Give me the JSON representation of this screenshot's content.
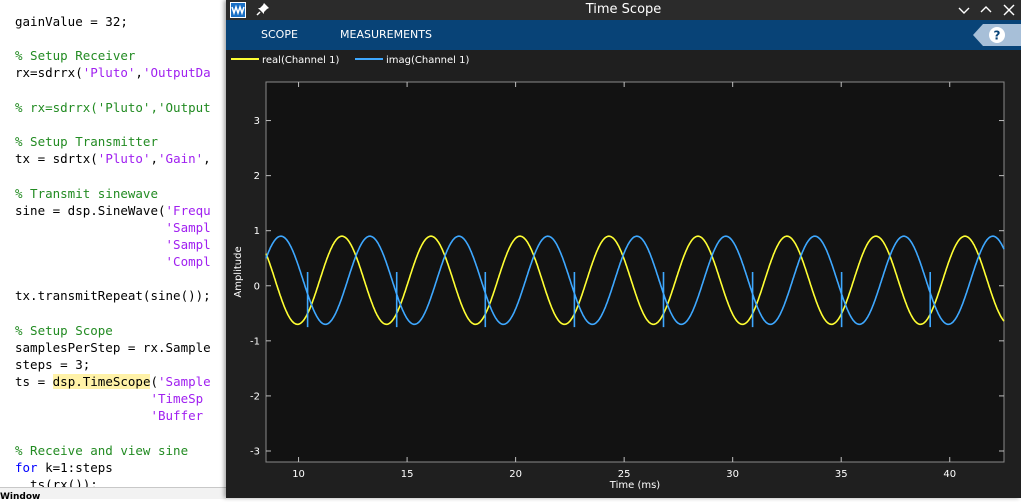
{
  "editor": {
    "lines": [
      [
        {
          "t": "gainValue = 32;",
          "c": ""
        }
      ],
      [],
      [
        {
          "t": "% Setup Receiver",
          "c": "cmt"
        }
      ],
      [
        {
          "t": "rx=sdrrx(",
          "c": ""
        },
        {
          "t": "'Pluto'",
          "c": "str"
        },
        {
          "t": ",",
          "c": ""
        },
        {
          "t": "'OutputDa",
          "c": "str"
        }
      ],
      [],
      [
        {
          "t": "% rx=sdrrx('Pluto','Output",
          "c": "cmt"
        }
      ],
      [],
      [
        {
          "t": "% Setup Transmitter",
          "c": "cmt"
        }
      ],
      [
        {
          "t": "tx = sdrtx(",
          "c": ""
        },
        {
          "t": "'Pluto'",
          "c": "str"
        },
        {
          "t": ",",
          "c": ""
        },
        {
          "t": "'Gain'",
          "c": "str"
        },
        {
          "t": ",",
          "c": ""
        }
      ],
      [],
      [
        {
          "t": "% Transmit sinewave",
          "c": "cmt"
        }
      ],
      [
        {
          "t": "sine = dsp.SineWave(",
          "c": ""
        },
        {
          "t": "'Frequ",
          "c": "str"
        }
      ],
      [
        {
          "t": "                    ",
          "c": ""
        },
        {
          "t": "'Sampl",
          "c": "str"
        }
      ],
      [
        {
          "t": "                    ",
          "c": ""
        },
        {
          "t": "'Sampl",
          "c": "str"
        }
      ],
      [
        {
          "t": "                    ",
          "c": ""
        },
        {
          "t": "'Compl",
          "c": "str"
        }
      ],
      [],
      [
        {
          "t": "tx.transmitRepeat(sine());",
          "c": ""
        }
      ],
      [],
      [
        {
          "t": "% Setup Scope",
          "c": "cmt"
        }
      ],
      [
        {
          "t": "samplesPerStep = rx.Sample",
          "c": ""
        }
      ],
      [
        {
          "t": "steps = 3;",
          "c": ""
        }
      ],
      [
        {
          "t": "ts = ",
          "c": ""
        },
        {
          "t": "dsp.TimeScope",
          "c": "hl"
        },
        {
          "t": "(",
          "c": ""
        },
        {
          "t": "'Sample",
          "c": "str"
        }
      ],
      [
        {
          "t": "                  ",
          "c": ""
        },
        {
          "t": "'TimeSp",
          "c": "str"
        }
      ],
      [
        {
          "t": "                  ",
          "c": ""
        },
        {
          "t": "'Buffer",
          "c": "str"
        }
      ],
      [],
      [
        {
          "t": "% Receive and view sine",
          "c": "cmt"
        }
      ],
      [
        {
          "t": "for",
          "c": "kw"
        },
        {
          "t": " k=1:steps",
          "c": ""
        }
      ],
      [
        {
          "t": "  ts(rx());",
          "c": ""
        }
      ]
    ],
    "command_window_label": "Window"
  },
  "scope": {
    "title": "Time Scope",
    "tabs": [
      "SCOPE",
      "MEASUREMENTS"
    ],
    "help_icon": "question-mark-icon",
    "legend": [
      {
        "name": "real(Channel 1)",
        "color": "#ffff33"
      },
      {
        "name": "imag(Channel 1)",
        "color": "#3ea8ff"
      }
    ]
  },
  "chart_data": {
    "type": "line",
    "title": "",
    "xlabel": "Time (ms)",
    "ylabel": "Amplitude",
    "xlim": [
      8.5,
      42.5
    ],
    "ylim": [
      -3.2,
      3.7
    ],
    "xticks": [
      10,
      15,
      20,
      25,
      30,
      35,
      40
    ],
    "yticks": [
      -3,
      -2,
      -1,
      0,
      1,
      2,
      3
    ],
    "grid": false,
    "legend_position": "top-left",
    "signal": {
      "period_ms": 4.1,
      "amplitude": 0.8,
      "offset": 0.1,
      "frame_boundaries_ms": [
        10.4,
        14.5,
        18.6,
        22.7,
        26.8,
        30.9,
        35.0,
        39.1
      ],
      "imag_spike_high": 0.25,
      "imag_spike_low": -0.75
    },
    "series": [
      {
        "name": "real(Channel 1)",
        "color": "#ffff33"
      },
      {
        "name": "imag(Channel 1)",
        "color": "#3ea8ff"
      }
    ]
  }
}
